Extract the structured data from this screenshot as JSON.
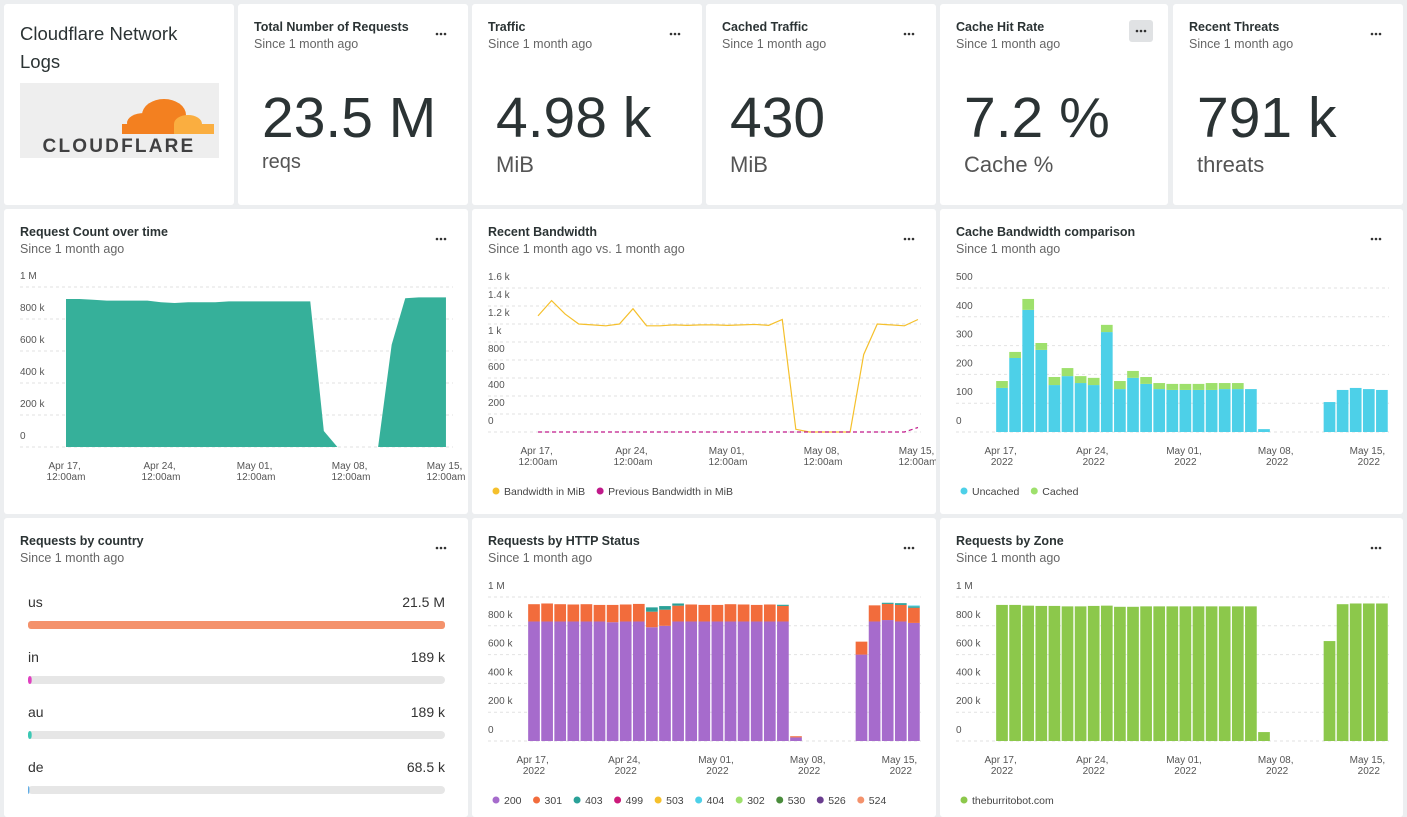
{
  "header": {
    "title": "Cloudflare Network Logs",
    "logo_text": "CLOUDFLARE"
  },
  "stats": [
    {
      "title": "Total Number of Requests",
      "subtitle": "Since 1 month ago",
      "value": "23.5 M",
      "unit": "reqs"
    },
    {
      "title": "Traffic",
      "subtitle": "Since 1 month ago",
      "value": "4.98 k",
      "unit": "MiB"
    },
    {
      "title": "Cached Traffic",
      "subtitle": "Since 1 month ago",
      "value": "430",
      "unit": "MiB"
    },
    {
      "title": "Cache Hit Rate",
      "subtitle": "Since 1 month ago",
      "value": "7.2 %",
      "unit": "Cache %"
    },
    {
      "title": "Recent Threats",
      "subtitle": "Since 1 month ago",
      "value": "791 k",
      "unit": "threats"
    }
  ],
  "charts": [
    {
      "type": "area",
      "title": "Request Count over time",
      "subtitle": "Since 1 month ago",
      "categories": [
        "Apr 17, 12:00am",
        null,
        null,
        null,
        null,
        null,
        null,
        "Apr 24, 12:00am",
        null,
        null,
        null,
        null,
        null,
        null,
        "May 01, 12:00am",
        null,
        null,
        null,
        null,
        null,
        null,
        "May 08, 12:00am",
        null,
        null,
        null,
        null,
        null,
        null,
        "May 15, 12:00am"
      ],
      "series": [
        {
          "color": "#36b09a",
          "values": [
            925000,
            925000,
            920000,
            915000,
            915000,
            915000,
            915000,
            905000,
            900000,
            905000,
            905000,
            905000,
            910000,
            910000,
            910000,
            910000,
            910000,
            910000,
            910000,
            100000,
            0,
            null,
            null,
            0,
            640000,
            930000,
            935000,
            935000,
            935000
          ]
        }
      ],
      "ylim": [
        0,
        1000000
      ],
      "yticks": [
        0,
        {
          "value": 200000,
          "label": "200 k"
        },
        {
          "value": 400000,
          "label": "400 k"
        },
        {
          "value": 600000,
          "label": "600 k"
        },
        {
          "value": 800000,
          "label": "800 k"
        },
        {
          "value": 1000000,
          "label": "1 M"
        }
      ],
      "grid": true
    },
    {
      "type": "line",
      "title": "Recent Bandwidth",
      "subtitle": "Since 1 month ago vs. 1 month ago",
      "categories": [
        "Apr 17, 12:00am",
        null,
        null,
        null,
        null,
        null,
        null,
        "Apr 24, 12:00am",
        null,
        null,
        null,
        null,
        null,
        null,
        "May 01, 12:00am",
        null,
        null,
        null,
        null,
        null,
        null,
        "May 08, 12:00am",
        null,
        null,
        null,
        null,
        null,
        null,
        "May 15, 12:00am"
      ],
      "series": [
        {
          "name": "Bandwidth in MiB",
          "color": "#f5c02c",
          "values": [
            1290,
            1460,
            1310,
            1200,
            1190,
            1180,
            1200,
            1370,
            1180,
            1180,
            1190,
            1185,
            1190,
            1190,
            1185,
            1190,
            1195,
            1185,
            1250,
            30,
            0,
            0,
            0,
            0,
            860,
            1200,
            1190,
            1180,
            1250
          ]
        },
        {
          "name": "Previous Bandwidth in MiB",
          "color": "#c0198a",
          "dashed": true,
          "values": [
            0,
            0,
            0,
            0,
            0,
            0,
            0,
            0,
            0,
            0,
            0,
            0,
            0,
            0,
            0,
            0,
            0,
            0,
            0,
            0,
            0,
            0,
            0,
            0,
            0,
            0,
            0,
            0,
            50
          ]
        }
      ],
      "ylim": [
        0,
        1600
      ],
      "yticks": [
        0,
        200,
        400,
        600,
        800,
        {
          "value": 1000,
          "label": "1 k"
        },
        {
          "value": 1200,
          "label": "1.2 k"
        },
        {
          "value": 1400,
          "label": "1.4 k"
        },
        {
          "value": 1600,
          "label": "1.6 k"
        }
      ],
      "grid": true
    },
    {
      "type": "bar",
      "stacked": true,
      "title": "Cache Bandwidth comparison",
      "subtitle": "Since 1 month ago",
      "categories": [
        "Apr 17, 2022",
        null,
        null,
        null,
        null,
        null,
        null,
        "Apr 24, 2022",
        null,
        null,
        null,
        null,
        null,
        null,
        "May 01, 2022",
        null,
        null,
        null,
        null,
        null,
        null,
        "May 08, 2022",
        null,
        null,
        null,
        null,
        null,
        null,
        "May 15, 2022",
        null
      ],
      "series": [
        {
          "name": "Uncached",
          "color": "#4dd0e8",
          "values": [
            153,
            257,
            424,
            285,
            163,
            194,
            170,
            163,
            347,
            149,
            188,
            167,
            149,
            146,
            146,
            146,
            146,
            149,
            149,
            149,
            10,
            null,
            null,
            null,
            null,
            104,
            146,
            153,
            149,
            146
          ]
        },
        {
          "name": "Cached",
          "color": "#9ee06c",
          "values": [
            24,
            21,
            38,
            24,
            28,
            28,
            24,
            25,
            25,
            28,
            24,
            24,
            21,
            21,
            21,
            21,
            24,
            21,
            21,
            0,
            0,
            null,
            null,
            null,
            null,
            0,
            0,
            0,
            0,
            0
          ]
        }
      ],
      "ylim": [
        0,
        500
      ],
      "yticks": [
        0,
        100,
        200,
        300,
        400,
        500
      ],
      "grid": true
    },
    {
      "type": "bar",
      "stacked": true,
      "title": "Requests by HTTP Status",
      "subtitle": "Since 1 month ago",
      "categories": [
        "Apr 17, 2022",
        null,
        null,
        null,
        null,
        null,
        null,
        "Apr 24, 2022",
        null,
        null,
        null,
        null,
        null,
        null,
        "May 01, 2022",
        null,
        null,
        null,
        null,
        null,
        null,
        "May 08, 2022",
        null,
        null,
        null,
        null,
        null,
        null,
        "May 15, 2022",
        null
      ],
      "series": [
        {
          "name": "200",
          "color": "#a66bcc",
          "values": [
            830000,
            830000,
            830000,
            830000,
            830000,
            830000,
            825000,
            830000,
            830000,
            790000,
            800000,
            830000,
            830000,
            830000,
            830000,
            830000,
            830000,
            830000,
            830000,
            830000,
            25000,
            null,
            null,
            null,
            null,
            600000,
            830000,
            840000,
            830000,
            820000
          ]
        },
        {
          "name": "301",
          "color": "#f26c3c",
          "values": [
            120000,
            125000,
            120000,
            118000,
            120000,
            115000,
            120000,
            118000,
            122000,
            108000,
            112000,
            110000,
            118000,
            115000,
            115000,
            120000,
            118000,
            115000,
            118000,
            108000,
            8000,
            null,
            null,
            null,
            null,
            90000,
            112000,
            112000,
            115000,
            105000
          ]
        },
        {
          "name": "403",
          "color": "#2aa198",
          "values": [
            0,
            0,
            0,
            0,
            0,
            0,
            0,
            0,
            0,
            30000,
            25000,
            15000,
            0,
            0,
            0,
            0,
            0,
            0,
            0,
            8000,
            0,
            null,
            null,
            null,
            null,
            0,
            0,
            8000,
            12000,
            10000
          ]
        },
        {
          "name": "499",
          "color": "#cc1a7a",
          "values": [
            0,
            0,
            0,
            0,
            0,
            0,
            0,
            0,
            0,
            0,
            0,
            0,
            0,
            0,
            0,
            0,
            0,
            0,
            0,
            0,
            0,
            null,
            null,
            null,
            null,
            0,
            0,
            0,
            0,
            0
          ]
        },
        {
          "name": "503",
          "color": "#f5c02c",
          "values": [
            0,
            0,
            0,
            0,
            0,
            0,
            0,
            0,
            0,
            0,
            0,
            0,
            0,
            0,
            0,
            0,
            0,
            0,
            0,
            0,
            0,
            null,
            null,
            null,
            null,
            0,
            0,
            0,
            0,
            0
          ]
        },
        {
          "name": "404",
          "color": "#4dd0e8",
          "values": [
            0,
            0,
            0,
            0,
            0,
            0,
            0,
            0,
            0,
            0,
            0,
            0,
            0,
            0,
            0,
            0,
            0,
            0,
            0,
            0,
            0,
            null,
            null,
            null,
            null,
            0,
            0,
            0,
            0,
            6000
          ]
        },
        {
          "name": "302",
          "color": "#9ee06c",
          "values": [
            0,
            0,
            0,
            0,
            0,
            0,
            0,
            0,
            0,
            0,
            0,
            0,
            0,
            0,
            0,
            0,
            0,
            0,
            0,
            0,
            0,
            null,
            null,
            null,
            null,
            0,
            0,
            0,
            0,
            0
          ]
        },
        {
          "name": "530",
          "color": "#4a8c3c",
          "values": [
            0,
            0,
            0,
            0,
            0,
            0,
            0,
            0,
            0,
            0,
            0,
            0,
            0,
            0,
            0,
            0,
            0,
            0,
            0,
            0,
            0,
            null,
            null,
            null,
            null,
            0,
            0,
            0,
            0,
            0
          ]
        },
        {
          "name": "526",
          "color": "#6a3d8f",
          "values": [
            0,
            0,
            0,
            0,
            0,
            0,
            0,
            0,
            0,
            0,
            0,
            0,
            0,
            0,
            0,
            0,
            0,
            0,
            0,
            0,
            0,
            null,
            null,
            null,
            null,
            0,
            0,
            0,
            0,
            0
          ]
        },
        {
          "name": "524",
          "color": "#f4926c",
          "values": [
            0,
            0,
            0,
            0,
            0,
            0,
            0,
            0,
            0,
            0,
            0,
            0,
            0,
            0,
            0,
            0,
            0,
            0,
            0,
            0,
            0,
            null,
            null,
            null,
            null,
            0,
            0,
            0,
            0,
            0
          ]
        }
      ],
      "ylim": [
        0,
        1000000
      ],
      "yticks": [
        0,
        {
          "value": 200000,
          "label": "200 k"
        },
        {
          "value": 400000,
          "label": "400 k"
        },
        {
          "value": 600000,
          "label": "600 k"
        },
        {
          "value": 800000,
          "label": "800 k"
        },
        {
          "value": 1000000,
          "label": "1 M"
        }
      ],
      "grid": true
    },
    {
      "type": "bar",
      "stacked": true,
      "title": "Requests by Zone",
      "subtitle": "Since 1 month ago",
      "categories": [
        "Apr 17, 2022",
        null,
        null,
        null,
        null,
        null,
        null,
        "Apr 24, 2022",
        null,
        null,
        null,
        null,
        null,
        null,
        "May 01, 2022",
        null,
        null,
        null,
        null,
        null,
        null,
        "May 08, 2022",
        null,
        null,
        null,
        null,
        null,
        null,
        "May 15, 2022",
        null
      ],
      "series": [
        {
          "name": "theburritobot.com",
          "color": "#8cc84b",
          "values": [
            945000,
            945000,
            940000,
            938000,
            938000,
            935000,
            935000,
            938000,
            940000,
            932000,
            932000,
            935000,
            935000,
            935000,
            935000,
            935000,
            935000,
            935000,
            935000,
            935000,
            62000,
            null,
            null,
            null,
            null,
            694000,
            950000,
            955000,
            955000,
            955000
          ]
        }
      ],
      "ylim": [
        0,
        1000000
      ],
      "yticks": [
        0,
        {
          "value": 200000,
          "label": "200 k"
        },
        {
          "value": 400000,
          "label": "400 k"
        },
        {
          "value": 600000,
          "label": "600 k"
        },
        {
          "value": 800000,
          "label": "800 k"
        },
        {
          "value": 1000000,
          "label": "1 M"
        }
      ],
      "grid": true
    }
  ],
  "country_list": {
    "title": "Requests by country",
    "subtitle": "Since 1 month ago",
    "rows": [
      {
        "name": "us",
        "value": 21500000,
        "value_label": "21.5 M",
        "color": "#f4926c"
      },
      {
        "name": "in",
        "value": 189000,
        "value_label": "189 k",
        "color": "#e040c0"
      },
      {
        "name": "au",
        "value": 189000,
        "value_label": "189 k",
        "color": "#3cc8b4"
      },
      {
        "name": "de",
        "value": 68500,
        "value_label": "68.5 k",
        "color": "#5aaae6"
      }
    ]
  }
}
